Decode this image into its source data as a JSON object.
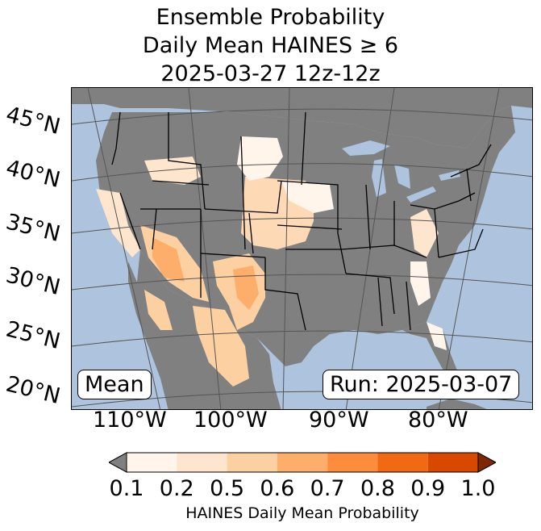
{
  "title": {
    "line1": "Ensemble Probability",
    "line2": "Daily Mean HAINES ≥ 6",
    "line3": "2025-03-27 12z-12z"
  },
  "map": {
    "region": "Contiguous United States",
    "lat_labels": [
      "45°N",
      "40°N",
      "35°N",
      "30°N",
      "25°N",
      "20°N"
    ],
    "lon_labels": [
      "110°W",
      "100°W",
      "90°W",
      "80°W"
    ],
    "ocean_color": "#adc3de",
    "land_color": "#808080"
  },
  "mean_label": "Mean",
  "run_label": "Run: 2025-03-07",
  "colorbar": {
    "label": "HAINES Daily Mean Probability",
    "ticks": [
      "0.1",
      "0.2",
      "0.5",
      "0.6",
      "0.7",
      "0.8",
      "0.9",
      "1.0"
    ],
    "under_color": "#808080",
    "over_color": "#7f2704",
    "colors": [
      "#fff5eb",
      "#fee6ce",
      "#fdd0a2",
      "#fdae6b",
      "#fd8d3c",
      "#f16913",
      "#d94801"
    ]
  }
}
